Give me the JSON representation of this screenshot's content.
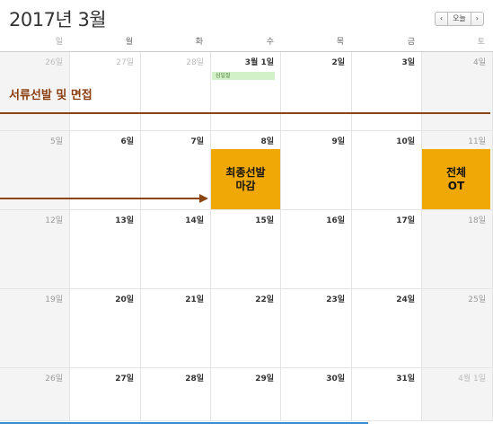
{
  "calendar": {
    "title": "2017년 3월",
    "nav": {
      "prev": "‹",
      "today": "오늘",
      "next": "›"
    },
    "weekdays": [
      "일",
      "월",
      "화",
      "수",
      "목",
      "금",
      "토"
    ],
    "weeks": [
      [
        "26일",
        "27일",
        "28일",
        "3월 1일",
        "2일",
        "3일",
        "4일"
      ],
      [
        "5일",
        "6일",
        "7일",
        "8일",
        "9일",
        "10일",
        "11일"
      ],
      [
        "12일",
        "13일",
        "14일",
        "15일",
        "16일",
        "17일",
        "18일"
      ],
      [
        "19일",
        "20일",
        "21일",
        "22일",
        "23일",
        "24일",
        "25일"
      ],
      [
        "26일",
        "27일",
        "28일",
        "29일",
        "30일",
        "31일",
        "4월 1일"
      ]
    ]
  },
  "events": {
    "holiday": "삼일절",
    "document_screening": "서류선발 및 면접",
    "final_deadline": "최종선발\n마감",
    "orientation": "전체\nOT"
  },
  "colors": {
    "accent_brown": "#8b4513",
    "event_yellow": "#f0a806",
    "holiday_green": "#d3f1c8"
  }
}
